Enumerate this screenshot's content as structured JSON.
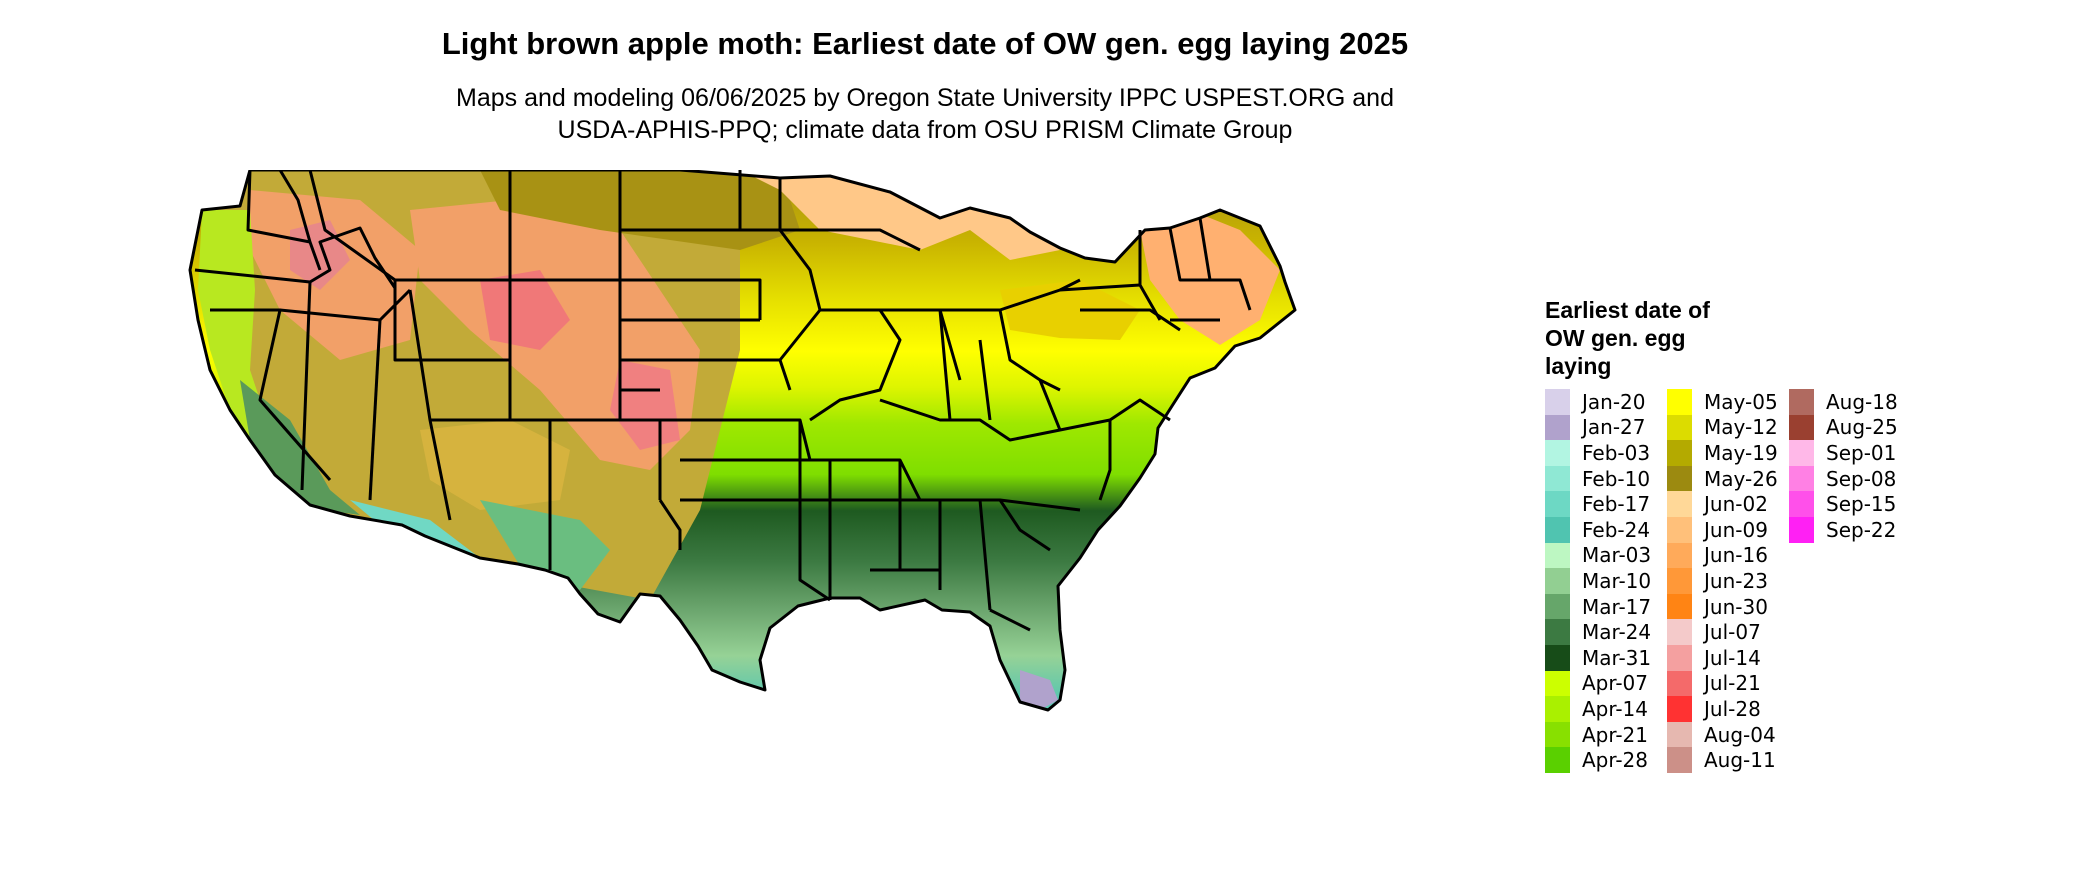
{
  "title": "Light brown apple moth: Earliest date of OW gen. egg laying 2025",
  "subtitle_line1": "Maps and modeling 06/06/2025 by Oregon State University IPPC USPEST.ORG and",
  "subtitle_line2": "USDA-APHIS-PPQ; climate data from OSU PRISM Climate Group",
  "legend": {
    "title": "Earliest date of OW gen. egg laying",
    "items": [
      {
        "label": "Jan-20",
        "color": "#d8d0ea"
      },
      {
        "label": "Jan-27",
        "color": "#b0a2cc"
      },
      {
        "label": "Feb-03",
        "color": "#b2f5e2"
      },
      {
        "label": "Feb-10",
        "color": "#8fe8d4"
      },
      {
        "label": "Feb-17",
        "color": "#6dd8c4"
      },
      {
        "label": "Feb-24",
        "color": "#50c4b0"
      },
      {
        "label": "Mar-03",
        "color": "#bdf7c2"
      },
      {
        "label": "Mar-10",
        "color": "#92cf92"
      },
      {
        "label": "Mar-17",
        "color": "#66a66a"
      },
      {
        "label": "Mar-24",
        "color": "#3c7a42"
      },
      {
        "label": "Mar-31",
        "color": "#174c18"
      },
      {
        "label": "Apr-07",
        "color": "#ccff00"
      },
      {
        "label": "Apr-14",
        "color": "#aaf000"
      },
      {
        "label": "Apr-21",
        "color": "#88e000"
      },
      {
        "label": "Apr-28",
        "color": "#5ad000"
      },
      {
        "label": "May-05",
        "color": "#ffff00"
      },
      {
        "label": "May-12",
        "color": "#dcdc00"
      },
      {
        "label": "May-19",
        "color": "#b4aa00"
      },
      {
        "label": "May-26",
        "color": "#9c8a10"
      },
      {
        "label": "Jun-02",
        "color": "#ffd898"
      },
      {
        "label": "Jun-09",
        "color": "#ffc07a"
      },
      {
        "label": "Jun-16",
        "color": "#ffaa5a"
      },
      {
        "label": "Jun-23",
        "color": "#ff9838"
      },
      {
        "label": "Jun-30",
        "color": "#ff8414"
      },
      {
        "label": "Jul-07",
        "color": "#f4caca"
      },
      {
        "label": "Jul-14",
        "color": "#f4a0a0"
      },
      {
        "label": "Jul-21",
        "color": "#f46a6a"
      },
      {
        "label": "Jul-28",
        "color": "#ff3232"
      },
      {
        "label": "Aug-04",
        "color": "#e6b8b0"
      },
      {
        "label": "Aug-11",
        "color": "#cc9088"
      },
      {
        "label": "Aug-18",
        "color": "#b06a60"
      },
      {
        "label": "Aug-25",
        "color": "#9a4030"
      },
      {
        "label": "Sep-01",
        "color": "#ffb8e8"
      },
      {
        "label": "Sep-08",
        "color": "#ff80e4"
      },
      {
        "label": "Sep-15",
        "color": "#ff50ea"
      },
      {
        "label": "Sep-22",
        "color": "#ff20f4"
      }
    ]
  }
}
